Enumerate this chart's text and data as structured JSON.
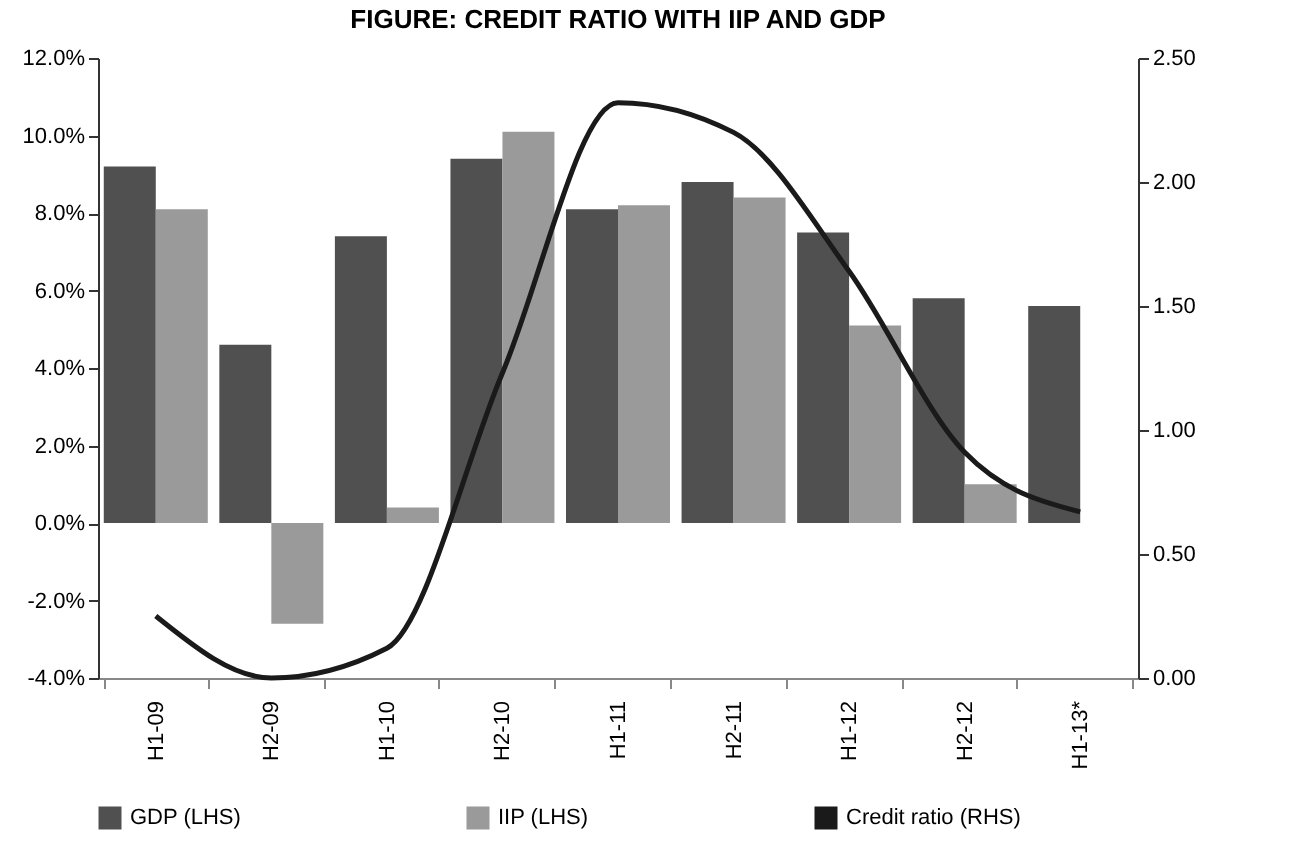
{
  "chart_data": {
    "type": "bar",
    "title": "FIGURE: CREDIT RATIO WITH IIP AND GDP",
    "categories": [
      "H1-09",
      "H2-09",
      "H1-10",
      "H2-10",
      "H1-11",
      "H2-11",
      "H1-12",
      "H2-12",
      "H1-13*"
    ],
    "series": [
      {
        "name": "GDP (LHS)",
        "color": "#505050",
        "values": [
          9.2,
          4.6,
          7.4,
          9.4,
          8.1,
          8.8,
          7.5,
          5.8,
          5.6
        ]
      },
      {
        "name": "IIP (LHS)",
        "color": "#9a9a9a",
        "values": [
          8.1,
          -2.6,
          0.4,
          10.1,
          8.2,
          8.4,
          5.1,
          1.0,
          null
        ]
      },
      {
        "name": "Credit ratio (RHS)",
        "type": "line",
        "axis": "y2",
        "color": "#1a1a1a",
        "values": [
          0.25,
          0.0,
          0.12,
          1.23,
          2.32,
          2.2,
          1.64,
          0.91,
          0.67
        ]
      }
    ],
    "ylim": [
      -4,
      12
    ],
    "yticks": [
      {
        "value": -4,
        "label": "-4.0%"
      },
      {
        "value": -2,
        "label": "-2.0%"
      },
      {
        "value": 0,
        "label": "0.0%"
      },
      {
        "value": 2,
        "label": "2.0%"
      },
      {
        "value": 4,
        "label": "4.0%"
      },
      {
        "value": 6,
        "label": "6.0%"
      },
      {
        "value": 8,
        "label": "8.0%"
      },
      {
        "value": 10,
        "label": "10.0%"
      },
      {
        "value": 12,
        "label": "12.0%"
      }
    ],
    "y2lim": [
      0,
      2.5
    ],
    "y2ticks": [
      {
        "value": 0,
        "label": "0.00"
      },
      {
        "value": 0.5,
        "label": "0.50"
      },
      {
        "value": 1,
        "label": "1.00"
      },
      {
        "value": 1.5,
        "label": "1.50"
      },
      {
        "value": 2,
        "label": "2.00"
      },
      {
        "value": 2.5,
        "label": "2.50"
      }
    ],
    "legend": "bottom",
    "grid": false
  }
}
